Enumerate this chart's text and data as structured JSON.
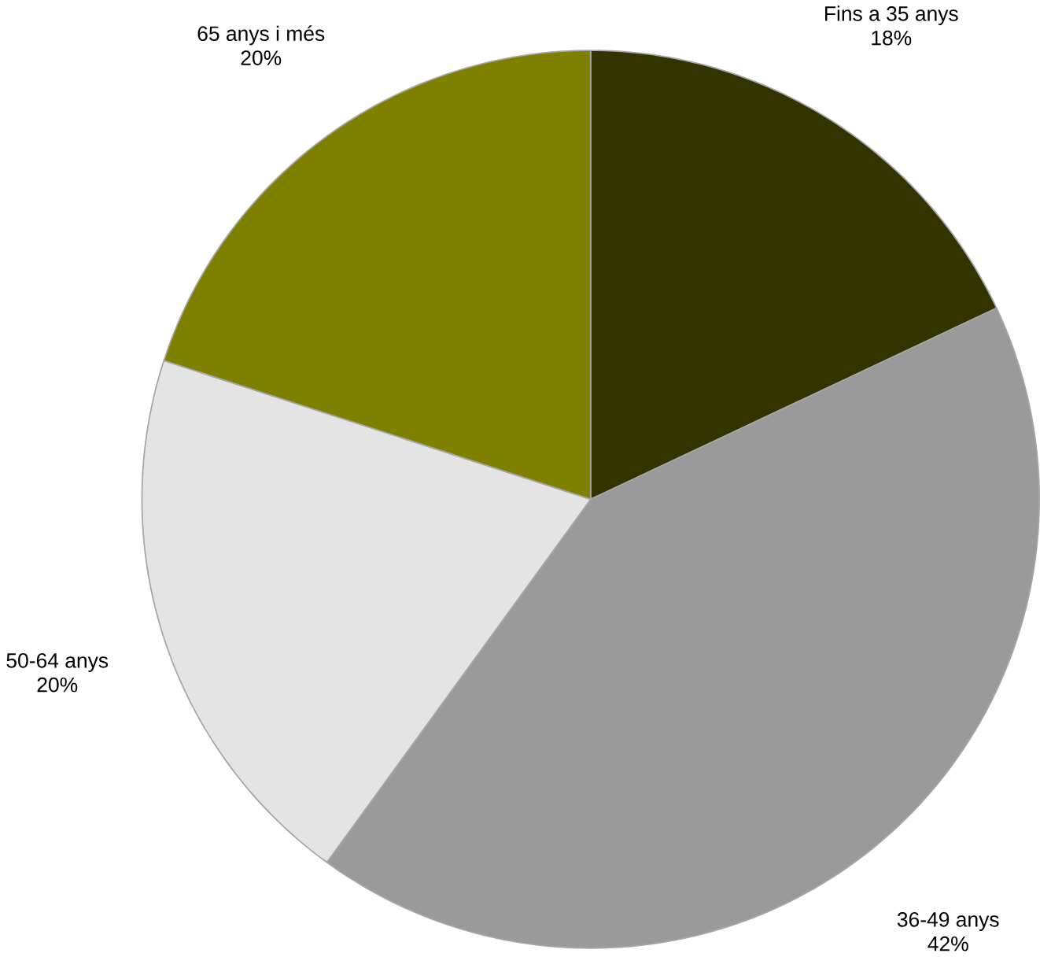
{
  "chart_data": {
    "type": "pie",
    "categories": [
      "Fins a 35 anys",
      "36-49 anys",
      "50-64 anys",
      "65 anys i més"
    ],
    "values": [
      18,
      42,
      20,
      20
    ],
    "value_labels": [
      "18%",
      "42%",
      "20%",
      "20%"
    ],
    "colors": [
      "#333300",
      "#9a9a9a",
      "#e4e4e4",
      "#808000"
    ]
  }
}
